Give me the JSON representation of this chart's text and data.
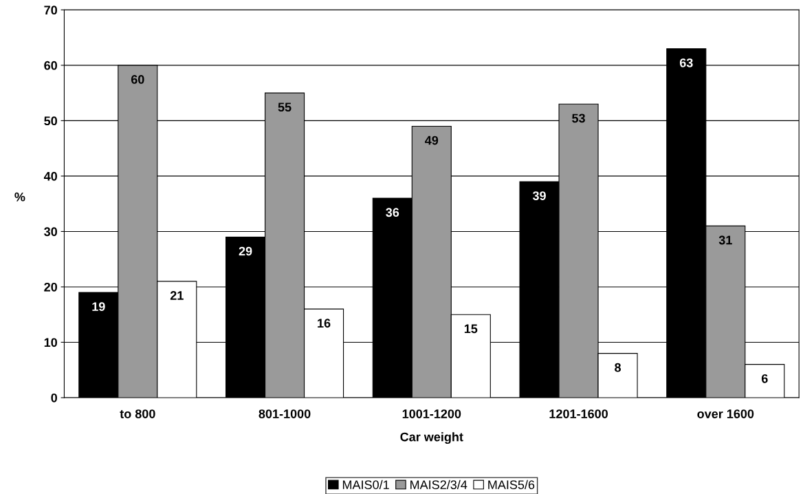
{
  "chart_data": {
    "type": "bar",
    "xlabel": "Car weight",
    "ylabel": "%",
    "categories": [
      "to 800",
      "801-1000",
      "1001-1200",
      "1201-1600",
      "over 1600"
    ],
    "series": [
      {
        "name": "MAIS0/1",
        "color": "#000000",
        "values": [
          19,
          29,
          36,
          39,
          63
        ]
      },
      {
        "name": "MAIS2/3/4",
        "color": "#9a9a9a",
        "values": [
          60,
          55,
          49,
          53,
          31
        ]
      },
      {
        "name": "MAIS5/6",
        "color": "#ffffff",
        "values": [
          21,
          16,
          15,
          8,
          6
        ]
      }
    ],
    "ylim": [
      0,
      70
    ],
    "yticks": [
      0,
      10,
      20,
      30,
      40,
      50,
      60,
      70
    ],
    "grid": "y",
    "legend": "bottom",
    "data_labels": true
  }
}
